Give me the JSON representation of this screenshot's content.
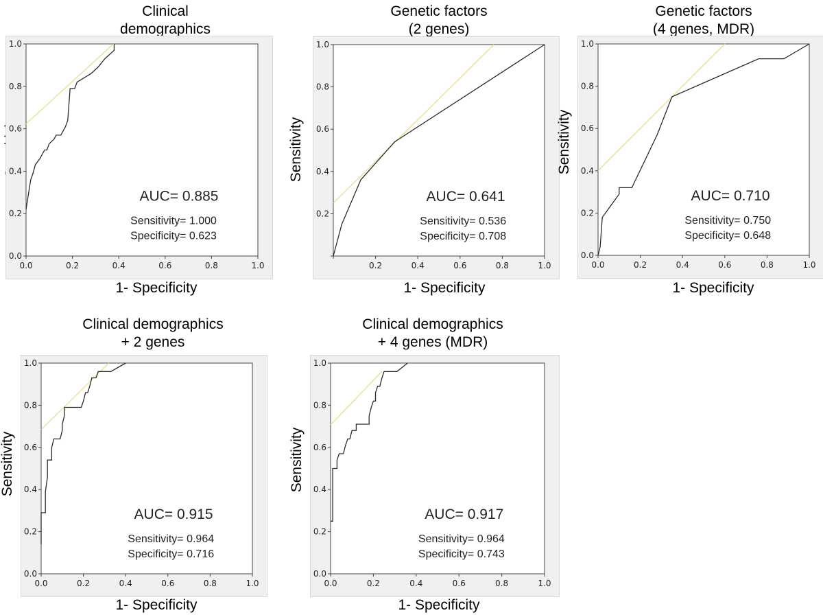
{
  "chart_data": [
    {
      "type": "line",
      "id": "p1",
      "title_lines": [
        "Clinical",
        "demographics"
      ],
      "xlabel": "1- Specificity",
      "ylabel": "Sensitivity",
      "xlim": [
        0,
        1
      ],
      "ylim": [
        0,
        1
      ],
      "x_ticks": [
        "0.0",
        "0.2",
        "0.4",
        "0.6",
        "0.8",
        "1.0"
      ],
      "y_ticks": [
        "0.0",
        "0.2",
        "0.4",
        "0.6",
        "0.8",
        "1.0"
      ],
      "auc_label": "AUC= 0.885",
      "sensitivity_label": "Sensitivity= 1.000",
      "specificity_label": "Specificity= 0.623",
      "tangent": [
        [
          0,
          0.623
        ],
        [
          0.377,
          1.0
        ]
      ],
      "roc": [
        [
          0,
          0.22
        ],
        [
          0.01,
          0.29
        ],
        [
          0.02,
          0.36
        ],
        [
          0.03,
          0.39
        ],
        [
          0.04,
          0.43
        ],
        [
          0.06,
          0.46
        ],
        [
          0.08,
          0.5
        ],
        [
          0.09,
          0.5
        ],
        [
          0.1,
          0.53
        ],
        [
          0.12,
          0.55
        ],
        [
          0.13,
          0.57
        ],
        [
          0.15,
          0.57
        ],
        [
          0.17,
          0.61
        ],
        [
          0.18,
          0.64
        ],
        [
          0.19,
          0.79
        ],
        [
          0.21,
          0.79
        ],
        [
          0.22,
          0.82
        ],
        [
          0.25,
          0.84
        ],
        [
          0.28,
          0.86
        ],
        [
          0.31,
          0.89
        ],
        [
          0.34,
          0.93
        ],
        [
          0.37,
          0.96
        ],
        [
          0.38,
          0.97
        ],
        [
          0.38,
          1.0
        ]
      ]
    },
    {
      "type": "line",
      "id": "p2",
      "title_lines": [
        "Genetic factors",
        "(2 genes)"
      ],
      "xlabel": "1- Specificity",
      "ylabel": "Sensitivity",
      "xlim": [
        0,
        1
      ],
      "ylim": [
        0,
        1
      ],
      "x_ticks": [
        "",
        "0.2",
        "0.4",
        "0.6",
        "0.8",
        "1.0"
      ],
      "y_ticks": [
        "",
        "0.2",
        "0.4",
        "0.6",
        "0.8",
        "1.0"
      ],
      "auc_label": "AUC= 0.641",
      "sensitivity_label": "Sensitivity= 0.536",
      "specificity_label": "Specificity= 0.708",
      "tangent": [
        [
          0,
          0.25
        ],
        [
          0.76,
          1.0
        ]
      ],
      "roc": [
        [
          0,
          0
        ],
        [
          0.04,
          0.15
        ],
        [
          0.13,
          0.36
        ],
        [
          0.29,
          0.54
        ],
        [
          1.0,
          1.0
        ]
      ]
    },
    {
      "type": "line",
      "id": "p3",
      "title_lines": [
        "Genetic factors",
        "(4 genes, MDR)"
      ],
      "xlabel": "1- Specificity",
      "ylabel": "Sensitivity",
      "xlim": [
        0,
        1
      ],
      "ylim": [
        0,
        1
      ],
      "x_ticks": [
        "0.0",
        "0.2",
        "0.4",
        "0.6",
        "0.8",
        "1.0"
      ],
      "y_ticks": [
        "0.0",
        "0.2",
        "0.4",
        "0.6",
        "0.8",
        "1.0"
      ],
      "auc_label": "AUC= 0.710",
      "sensitivity_label": "Sensitivity= 0.750",
      "specificity_label": "Specificity= 0.648",
      "tangent": [
        [
          0,
          0.4
        ],
        [
          0.6,
          1.0
        ]
      ],
      "roc": [
        [
          0,
          0
        ],
        [
          0.01,
          0.04
        ],
        [
          0.02,
          0.18
        ],
        [
          0.1,
          0.29
        ],
        [
          0.1,
          0.32
        ],
        [
          0.16,
          0.32
        ],
        [
          0.28,
          0.57
        ],
        [
          0.35,
          0.75
        ],
        [
          0.76,
          0.93
        ],
        [
          0.88,
          0.93
        ],
        [
          1.0,
          1.0
        ]
      ]
    },
    {
      "type": "line",
      "id": "p4",
      "title_lines": [
        "Clinical demographics",
        "+ 2 genes"
      ],
      "xlabel": "1- Specificity",
      "ylabel": "Sensitivity",
      "xlim": [
        0,
        1
      ],
      "ylim": [
        0,
        1
      ],
      "x_ticks": [
        "0.0",
        "0.2",
        "0.4",
        "0.6",
        "0.8",
        "1.0"
      ],
      "y_ticks": [
        "0.0",
        "0.2",
        "0.4",
        "0.6",
        "0.8",
        "1.0"
      ],
      "auc_label": "AUC= 0.915",
      "sensitivity_label": "Sensitivity= 0.964",
      "specificity_label": "Specificity= 0.716",
      "tangent": [
        [
          0,
          0.684
        ],
        [
          0.32,
          1.0
        ]
      ],
      "roc": [
        [
          0,
          0.14
        ],
        [
          0,
          0.29
        ],
        [
          0.02,
          0.29
        ],
        [
          0.02,
          0.39
        ],
        [
          0.03,
          0.46
        ],
        [
          0.03,
          0.54
        ],
        [
          0.05,
          0.54
        ],
        [
          0.05,
          0.6
        ],
        [
          0.06,
          0.64
        ],
        [
          0.09,
          0.64
        ],
        [
          0.1,
          0.68
        ],
        [
          0.1,
          0.71
        ],
        [
          0.11,
          0.75
        ],
        [
          0.11,
          0.79
        ],
        [
          0.19,
          0.79
        ],
        [
          0.2,
          0.82
        ],
        [
          0.21,
          0.86
        ],
        [
          0.22,
          0.86
        ],
        [
          0.23,
          0.89
        ],
        [
          0.24,
          0.93
        ],
        [
          0.26,
          0.93
        ],
        [
          0.27,
          0.96
        ],
        [
          0.3,
          0.96
        ],
        [
          0.33,
          0.96
        ],
        [
          0.4,
          1.0
        ]
      ]
    },
    {
      "type": "line",
      "id": "p5",
      "title_lines": [
        "Clinical demographics",
        "+ 4 genes (MDR)"
      ],
      "xlabel": "1- Specificity",
      "ylabel": "Sensitivity",
      "xlim": [
        0,
        1
      ],
      "ylim": [
        0,
        1
      ],
      "x_ticks": [
        "0.0",
        "0.2",
        "0.4",
        "0.6",
        "0.8",
        "1.0"
      ],
      "y_ticks": [
        "0.0",
        "0.2",
        "0.4",
        "0.6",
        "0.8",
        "1.0"
      ],
      "auc_label": "AUC= 0.917",
      "sensitivity_label": "Sensitivity= 0.964",
      "specificity_label": "Specificity= 0.743",
      "tangent": [
        [
          0,
          0.707
        ],
        [
          0.24,
          0.96
        ]
      ],
      "roc": [
        [
          0,
          0.25
        ],
        [
          0.01,
          0.25
        ],
        [
          0.01,
          0.5
        ],
        [
          0.03,
          0.5
        ],
        [
          0.03,
          0.54
        ],
        [
          0.04,
          0.57
        ],
        [
          0.06,
          0.57
        ],
        [
          0.07,
          0.61
        ],
        [
          0.08,
          0.64
        ],
        [
          0.09,
          0.64
        ],
        [
          0.1,
          0.68
        ],
        [
          0.12,
          0.68
        ],
        [
          0.12,
          0.71
        ],
        [
          0.18,
          0.71
        ],
        [
          0.18,
          0.75
        ],
        [
          0.19,
          0.79
        ],
        [
          0.2,
          0.82
        ],
        [
          0.21,
          0.82
        ],
        [
          0.21,
          0.86
        ],
        [
          0.22,
          0.89
        ],
        [
          0.23,
          0.89
        ],
        [
          0.24,
          0.93
        ],
        [
          0.25,
          0.96
        ],
        [
          0.31,
          0.96
        ],
        [
          0.36,
          1.0
        ]
      ]
    }
  ]
}
